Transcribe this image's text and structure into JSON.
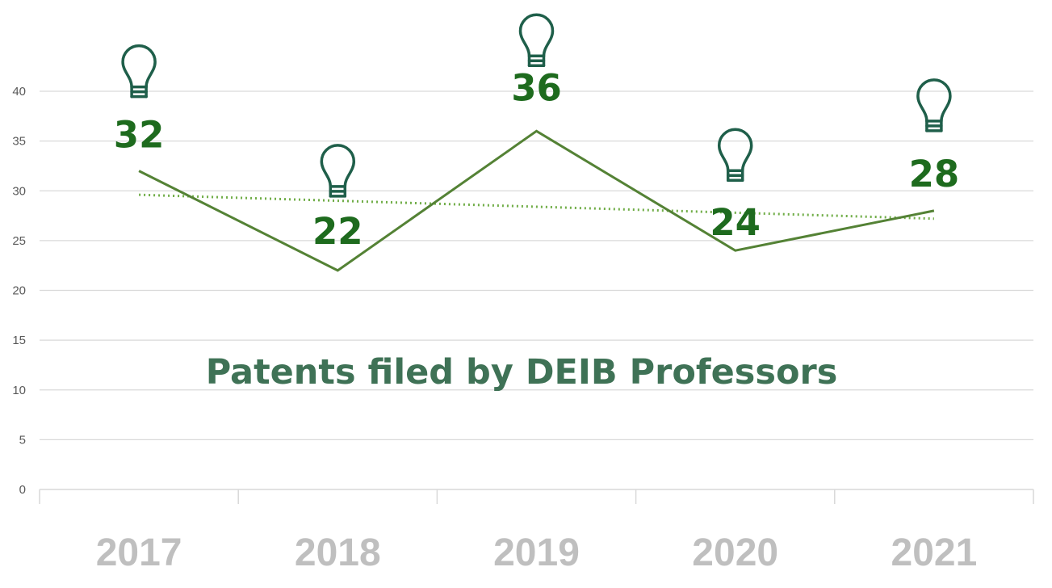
{
  "chart_data": {
    "type": "line",
    "title": "Patents filed by DEIB Professors",
    "xlabel": "",
    "ylabel": "",
    "categories": [
      "2017",
      "2018",
      "2019",
      "2020",
      "2021"
    ],
    "series": [
      {
        "name": "Patents filed",
        "values": [
          32,
          22,
          36,
          24,
          28
        ]
      }
    ],
    "trendline": {
      "type": "linear",
      "style": "dotted",
      "values": [
        29.6,
        29.0,
        28.4,
        27.8,
        27.2
      ]
    },
    "ylim": [
      0,
      40
    ],
    "yticks": [
      0,
      5,
      10,
      15,
      20,
      25,
      30,
      35,
      40
    ],
    "grid": true,
    "legend": "none",
    "markers": {
      "icon": "lightbulb-icon"
    }
  },
  "colors": {
    "line": "#548235",
    "trend": "#70ad47",
    "data_label": "#1e6b1e",
    "title": "#3f7256",
    "icon": "#1f5f4a",
    "grid": "#d9d9d9",
    "axis_label": "#bfbfbf"
  }
}
